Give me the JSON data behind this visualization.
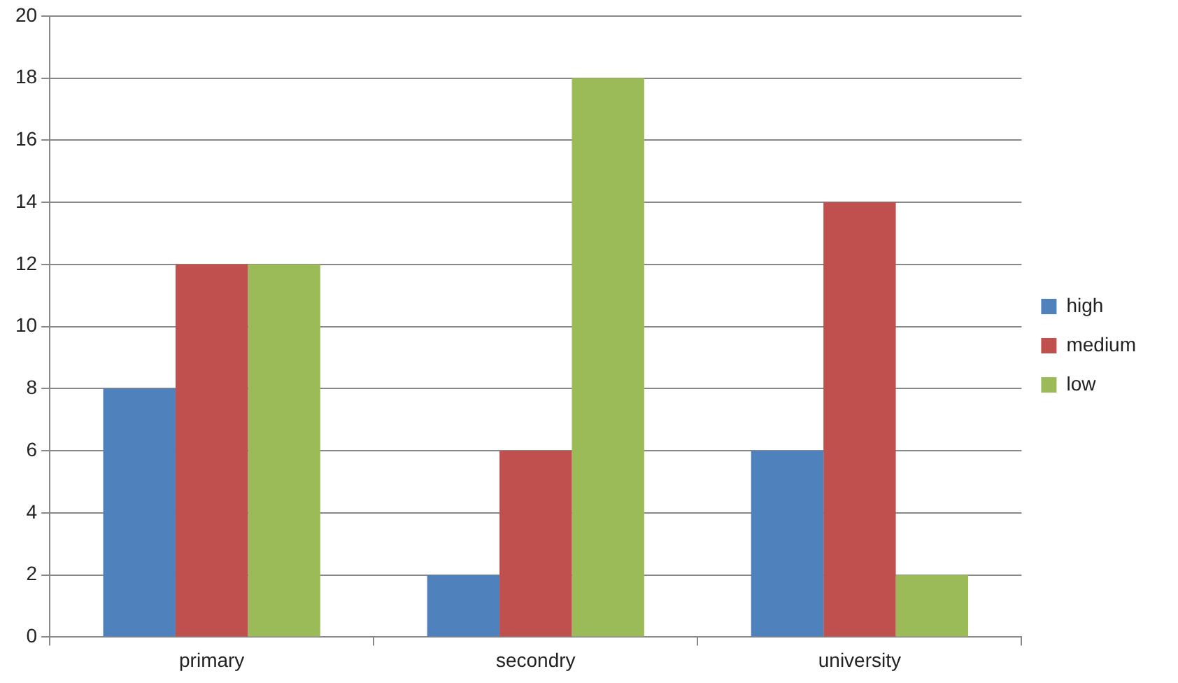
{
  "chart_data": {
    "type": "bar",
    "categories": [
      "primary",
      "secondry",
      "university"
    ],
    "series": [
      {
        "name": "high",
        "color": "#4f81bd",
        "values": [
          8,
          2,
          6
        ]
      },
      {
        "name": "medium",
        "color": "#c0504d",
        "values": [
          12,
          6,
          14
        ]
      },
      {
        "name": "low",
        "color": "#9bbb59",
        "values": [
          12,
          18,
          2
        ]
      }
    ],
    "ylim": [
      0,
      20
    ],
    "yticks": [
      0,
      2,
      4,
      6,
      8,
      10,
      12,
      14,
      16,
      18,
      20
    ],
    "grid": "y",
    "legend": "right"
  }
}
